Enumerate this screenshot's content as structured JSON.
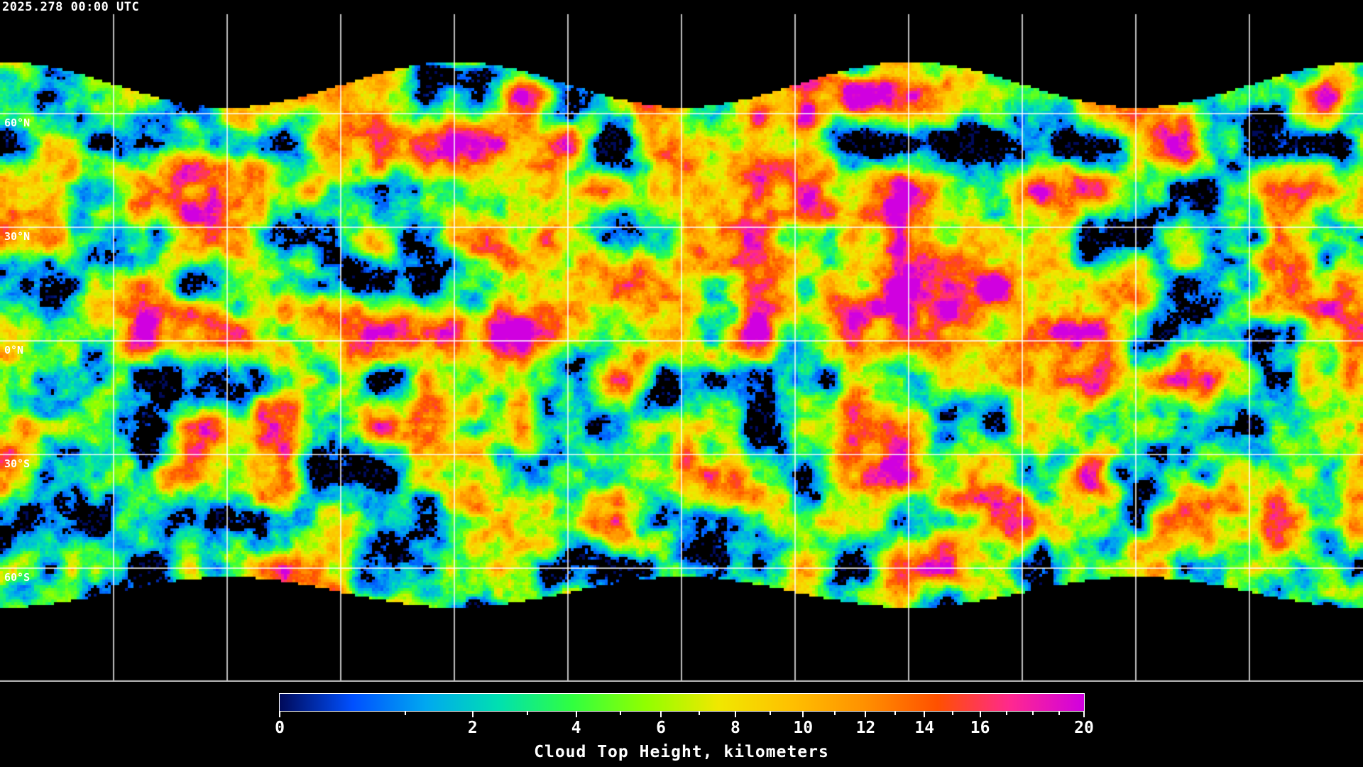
{
  "timestamp": "2025.278 00:00 UTC",
  "map": {
    "projection": "equirectangular",
    "gridline_spacing_degrees": 30,
    "lat_labels": [
      "60°N",
      "30°N",
      "0°N",
      "30°S",
      "60°S"
    ],
    "background_color": "#000000",
    "coastline_color": "#ffffff",
    "gridline_color": "#ffffff"
  },
  "colorbar": {
    "title": "Cloud Top Height, kilometers",
    "min": 0,
    "max": 20,
    "major_ticks": [
      "0",
      "2",
      "4",
      "6",
      "8",
      "10",
      "12",
      "14",
      "16",
      "20"
    ],
    "minor_ticks": [
      1,
      3,
      5,
      7,
      9,
      11,
      13,
      15,
      17,
      18,
      19
    ],
    "colors": [
      "#000a5a",
      "#0050ff",
      "#00a8f0",
      "#00e0b0",
      "#30ff40",
      "#90ff00",
      "#f0e800",
      "#ffc000",
      "#ff9000",
      "#ff5000",
      "#ff2890",
      "#d000e0"
    ]
  }
}
